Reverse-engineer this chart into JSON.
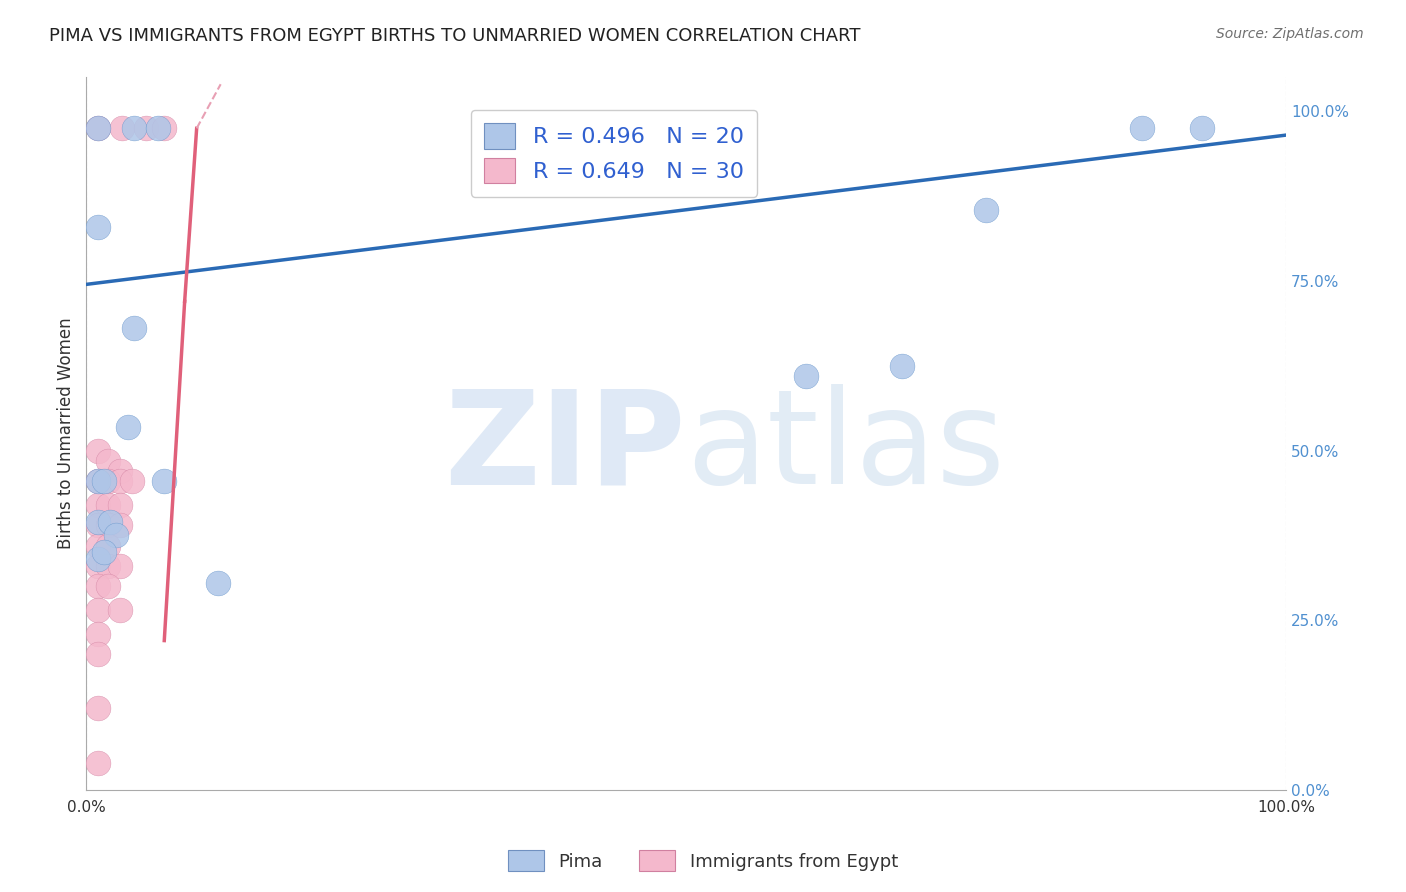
{
  "title": "PIMA VS IMMIGRANTS FROM EGYPT BIRTHS TO UNMARRIED WOMEN CORRELATION CHART",
  "source": "Source: ZipAtlas.com",
  "ylabel": "Births to Unmarried Women",
  "watermark_zip": "ZIP",
  "watermark_atlas": "atlas",
  "blue_R": 0.496,
  "blue_N": 20,
  "pink_R": 0.649,
  "pink_N": 30,
  "blue_color": "#aec6e8",
  "pink_color": "#f4b8cc",
  "blue_line_color": "#2a6ab5",
  "pink_line_color": "#e0607a",
  "pink_dash_color": "#e8a0b4",
  "background_color": "#ffffff",
  "grid_color": "#cccccc",
  "title_color": "#222222",
  "legend_R_color": "#3060d0",
  "right_axis_color": "#5090d0",
  "blue_points": [
    [
      0.01,
      0.975
    ],
    [
      0.04,
      0.975
    ],
    [
      0.06,
      0.975
    ],
    [
      0.01,
      0.83
    ],
    [
      0.04,
      0.68
    ],
    [
      0.035,
      0.535
    ],
    [
      0.01,
      0.455
    ],
    [
      0.015,
      0.455
    ],
    [
      0.065,
      0.455
    ],
    [
      0.01,
      0.395
    ],
    [
      0.02,
      0.395
    ],
    [
      0.025,
      0.375
    ],
    [
      0.01,
      0.34
    ],
    [
      0.015,
      0.35
    ],
    [
      0.11,
      0.305
    ],
    [
      0.6,
      0.61
    ],
    [
      0.75,
      0.855
    ],
    [
      0.88,
      0.975
    ],
    [
      0.93,
      0.975
    ],
    [
      0.68,
      0.625
    ]
  ],
  "pink_points": [
    [
      0.01,
      0.975
    ],
    [
      0.03,
      0.975
    ],
    [
      0.05,
      0.975
    ],
    [
      0.065,
      0.975
    ],
    [
      0.01,
      0.5
    ],
    [
      0.018,
      0.485
    ],
    [
      0.028,
      0.47
    ],
    [
      0.01,
      0.455
    ],
    [
      0.018,
      0.455
    ],
    [
      0.028,
      0.455
    ],
    [
      0.038,
      0.455
    ],
    [
      0.01,
      0.42
    ],
    [
      0.018,
      0.42
    ],
    [
      0.028,
      0.42
    ],
    [
      0.01,
      0.39
    ],
    [
      0.018,
      0.39
    ],
    [
      0.028,
      0.39
    ],
    [
      0.01,
      0.36
    ],
    [
      0.018,
      0.36
    ],
    [
      0.01,
      0.33
    ],
    [
      0.018,
      0.33
    ],
    [
      0.028,
      0.33
    ],
    [
      0.01,
      0.3
    ],
    [
      0.018,
      0.3
    ],
    [
      0.01,
      0.265
    ],
    [
      0.028,
      0.265
    ],
    [
      0.01,
      0.23
    ],
    [
      0.01,
      0.2
    ],
    [
      0.01,
      0.12
    ],
    [
      0.01,
      0.04
    ]
  ],
  "blue_line": [
    [
      0.0,
      0.745
    ],
    [
      1.0,
      0.965
    ]
  ],
  "pink_line_solid": [
    [
      0.065,
      0.22
    ],
    [
      0.082,
      0.72
    ]
  ],
  "pink_line_extend_solid": [
    [
      0.082,
      0.72
    ],
    [
      0.092,
      0.975
    ]
  ],
  "pink_line_dashed": [
    [
      0.092,
      0.975
    ],
    [
      0.112,
      1.04
    ]
  ],
  "xlim": [
    0.0,
    1.0
  ],
  "ylim": [
    0.0,
    1.05
  ],
  "right_yticks": [
    0.0,
    0.25,
    0.5,
    0.75,
    1.0
  ],
  "right_ytick_labels": [
    "0.0%",
    "25.0%",
    "50.0%",
    "75.0%",
    "100.0%"
  ]
}
